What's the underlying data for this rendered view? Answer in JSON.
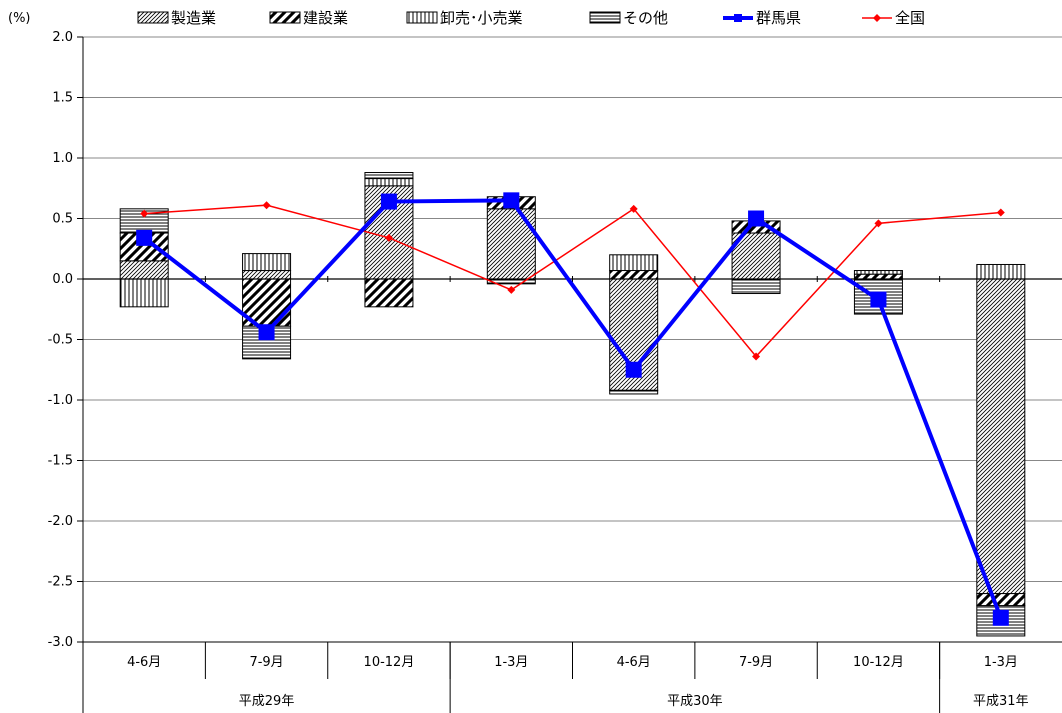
{
  "chart_data": {
    "type": "bar",
    "unit_label": "(%)",
    "ylim": [
      -3.0,
      2.0
    ],
    "y_ticks": [
      "2.0",
      "1.5",
      "1.0",
      "0.5",
      "0.0",
      "-0.5",
      "-1.0",
      "-1.5",
      "-2.0",
      "-2.5",
      "-3.0"
    ],
    "grid": true,
    "legend_position": "top",
    "categories": [
      "4-6月",
      "7-9月",
      "10-12月",
      "1-3月",
      "4-6月",
      "7-9月",
      "10-12月",
      "1-3月"
    ],
    "year_groups": [
      {
        "label": "平成29年",
        "count": 3
      },
      {
        "label": "平成30年",
        "count": 4
      },
      {
        "label": "平成31年",
        "count": 1
      }
    ],
    "series": [
      {
        "name": "製造業",
        "kind": "bar",
        "pattern": "diag-fine",
        "values": [
          0.15,
          0.07,
          0.77,
          0.58,
          -0.92,
          0.38,
          0.0,
          -2.6
        ]
      },
      {
        "name": "建設業",
        "kind": "bar",
        "pattern": "diag-thick",
        "values": [
          0.23,
          -0.39,
          -0.23,
          0.1,
          0.07,
          0.1,
          0.04,
          -0.1
        ]
      },
      {
        "name": "卸売･小売業",
        "kind": "bar",
        "pattern": "vertical",
        "values": [
          -0.23,
          0.14,
          0.06,
          0.0,
          0.13,
          0.0,
          0.03,
          0.12
        ]
      },
      {
        "name": "その他",
        "kind": "bar",
        "pattern": "horizontal",
        "values": [
          0.2,
          -0.27,
          0.05,
          -0.04,
          -0.03,
          -0.12,
          -0.29,
          -0.25
        ]
      },
      {
        "name": "群馬県",
        "kind": "line",
        "color": "#0000ff",
        "marker": "square",
        "values": [
          0.34,
          -0.44,
          0.64,
          0.65,
          -0.75,
          0.5,
          -0.17,
          -2.8
        ]
      },
      {
        "name": "全国",
        "kind": "line",
        "color": "#ff0000",
        "marker": "diamond",
        "values": [
          0.54,
          0.61,
          0.34,
          -0.09,
          0.58,
          -0.64,
          0.46,
          0.55
        ]
      }
    ]
  }
}
